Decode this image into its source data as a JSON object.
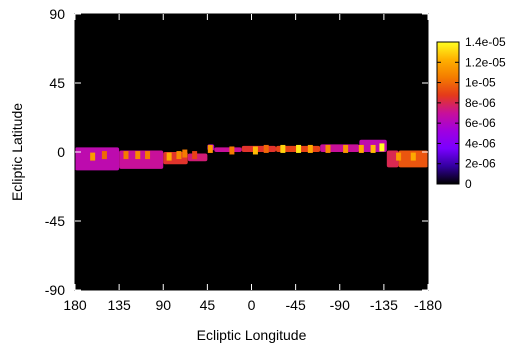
{
  "chart_data": {
    "type": "heatmap",
    "xlabel": "Ecliptic Longitude",
    "ylabel": "Ecliptic Latitude",
    "x_reversed": true,
    "xlim": [
      180,
      -180
    ],
    "ylim": [
      -90,
      90
    ],
    "xticks": [
      180,
      135,
      90,
      45,
      0,
      -45,
      -90,
      -135,
      -180
    ],
    "yticks": [
      90,
      45,
      0,
      -45,
      -90
    ],
    "background_color": "#000000",
    "colorbar": {
      "ticks": [
        "1.4e-05",
        "1.2e-05",
        "1e-05",
        "8e-06",
        "6e-06",
        "4e-06",
        "2e-06",
        "0"
      ],
      "min": 0,
      "max": 1.4e-05,
      "colors": [
        "#000000",
        "#3300a0",
        "#7a00ff",
        "#a000e0",
        "#c8109a",
        "#e53a1a",
        "#f47c00",
        "#ffb000",
        "#ffff20"
      ]
    },
    "band_segments": [
      {
        "lon_start": 180,
        "lon_end": 135,
        "lat_top": 3,
        "lat_bottom": -12,
        "value": 6.5e-06
      },
      {
        "lon_start": 135,
        "lon_end": 90,
        "lat_top": 1,
        "lat_bottom": -11,
        "value": 7e-06
      },
      {
        "lon_start": 90,
        "lon_end": 65,
        "lat_top": 0,
        "lat_bottom": -8,
        "value": 8.5e-06
      },
      {
        "lon_start": 65,
        "lon_end": 45,
        "lat_top": -1,
        "lat_bottom": -6,
        "value": 7.5e-06
      },
      {
        "lon_start": 45,
        "lon_end": 38,
        "lat_top": 5,
        "lat_bottom": 1,
        "value": 6e-06
      },
      {
        "lon_start": 38,
        "lon_end": 10,
        "lat_top": 3,
        "lat_bottom": 0,
        "value": 7e-06
      },
      {
        "lon_start": 10,
        "lon_end": -25,
        "lat_top": 4,
        "lat_bottom": 0,
        "value": 8.5e-06
      },
      {
        "lon_start": -25,
        "lon_end": -70,
        "lat_top": 4,
        "lat_bottom": 0,
        "value": 9e-06
      },
      {
        "lon_start": -70,
        "lon_end": -110,
        "lat_top": 5,
        "lat_bottom": 0,
        "value": 7e-06
      },
      {
        "lon_start": -110,
        "lon_end": -138,
        "lat_top": 8,
        "lat_bottom": 0,
        "value": 6.5e-06
      },
      {
        "lon_start": -138,
        "lon_end": -150,
        "lat_top": 1,
        "lat_bottom": -10,
        "value": 8e-06
      },
      {
        "lon_start": -150,
        "lon_end": -180,
        "lat_top": 1,
        "lat_bottom": -10,
        "value": 9.5e-06
      }
    ],
    "hot_spots": [
      {
        "lon": 162,
        "lat": -3,
        "value": 1.15e-05
      },
      {
        "lon": 150,
        "lat": -2,
        "value": 1e-05
      },
      {
        "lon": 128,
        "lat": -2,
        "value": 1.05e-05
      },
      {
        "lon": 116,
        "lat": -2,
        "value": 1.1e-05
      },
      {
        "lon": 106,
        "lat": -2,
        "value": 1.05e-05
      },
      {
        "lon": 84,
        "lat": -3,
        "value": 1.2e-05
      },
      {
        "lon": 74,
        "lat": -2,
        "value": 1.1e-05
      },
      {
        "lon": 68,
        "lat": -1,
        "value": 1.05e-05
      },
      {
        "lon": 58,
        "lat": -2,
        "value": 9e-06
      },
      {
        "lon": 42,
        "lat": 2,
        "value": 1.15e-05
      },
      {
        "lon": 20,
        "lat": 1,
        "value": 1.05e-05
      },
      {
        "lon": -4,
        "lat": 1,
        "value": 1.25e-05
      },
      {
        "lon": -15,
        "lat": 2,
        "value": 1e-05
      },
      {
        "lon": -32,
        "lat": 2,
        "value": 1.3e-05
      },
      {
        "lon": -48,
        "lat": 2,
        "value": 1.35e-05
      },
      {
        "lon": -60,
        "lat": 2,
        "value": 1.2e-05
      },
      {
        "lon": -78,
        "lat": 2,
        "value": 1.1e-05
      },
      {
        "lon": -96,
        "lat": 2,
        "value": 1.15e-05
      },
      {
        "lon": -112,
        "lat": 2,
        "value": 1.2e-05
      },
      {
        "lon": -124,
        "lat": 2,
        "value": 1.25e-05
      },
      {
        "lon": -133,
        "lat": 3,
        "value": 1.4e-05
      },
      {
        "lon": -150,
        "lat": -3,
        "value": 1.15e-05
      },
      {
        "lon": -165,
        "lat": -3,
        "value": 1.2e-05
      }
    ]
  }
}
